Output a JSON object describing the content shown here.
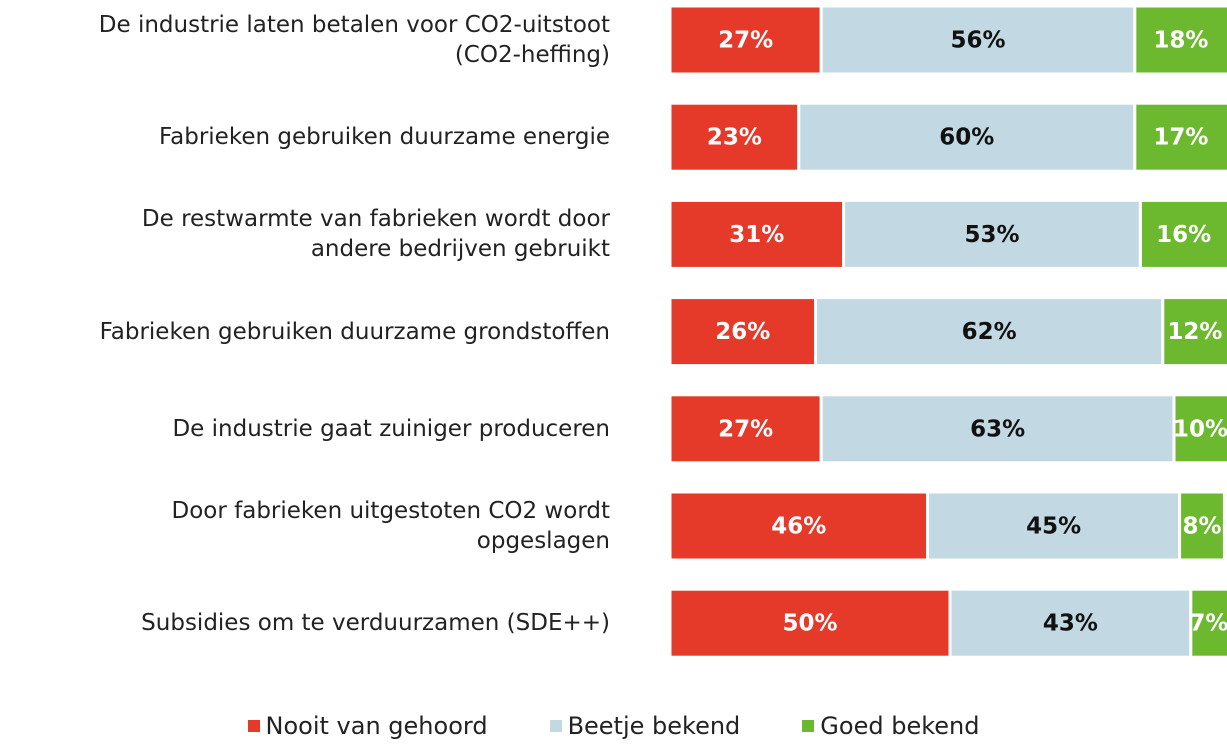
{
  "chart_data": {
    "type": "stacked-bar-horizontal",
    "categories": [
      "De industrie laten betalen voor CO2-uitstoot\n(CO2-heffing)",
      "Fabrieken gebruiken duurzame energie",
      "De restwarmte van fabrieken wordt door\nandere bedrijven gebruikt",
      "Fabrieken gebruiken duurzame grondstoffen",
      "De industrie gaat zuiniger produceren",
      "Door fabrieken uitgestoten CO2 wordt\nopgeslagen",
      "Subsidies om te verduurzamen (SDE++)"
    ],
    "series": [
      {
        "name": "Nooit van gehoord",
        "color": "#e5392a",
        "values": [
          27,
          23,
          31,
          26,
          27,
          46,
          50
        ],
        "value_labels": [
          "27%",
          "23%",
          "31%",
          "26%",
          "27%",
          "46%",
          "50%"
        ]
      },
      {
        "name": "Beetje bekend",
        "color": "#c2d9e3",
        "values": [
          56,
          60,
          53,
          62,
          63,
          45,
          43
        ],
        "value_labels": [
          "56%",
          "60%",
          "53%",
          "62%",
          "63%",
          "45%",
          "43%"
        ]
      },
      {
        "name": "Goed bekend",
        "color": "#6cb82f",
        "values": [
          18,
          17,
          16,
          12,
          10,
          8,
          7
        ],
        "value_labels": [
          "18%",
          "17%",
          "16%",
          "12%",
          "10%",
          "8%",
          "7%"
        ]
      }
    ],
    "legend": "bottom"
  }
}
